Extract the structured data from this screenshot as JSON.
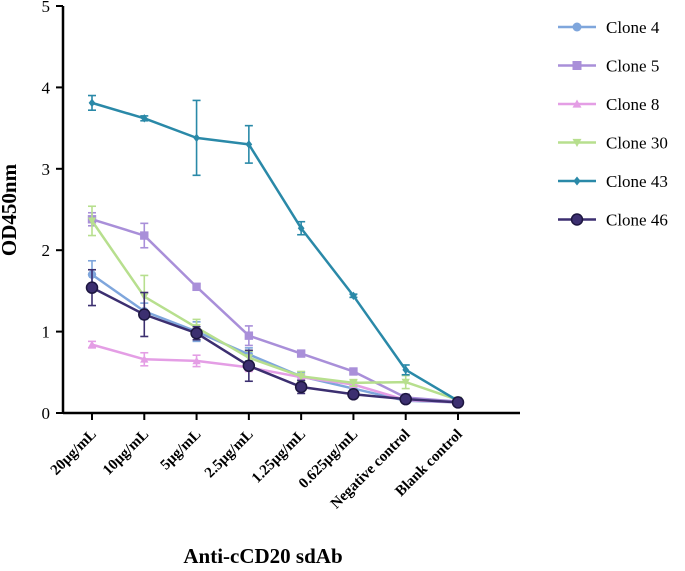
{
  "chart_data": {
    "type": "line",
    "title": "",
    "xlabel": "Anti-cCD20 sdAb",
    "ylabel": "OD450nm",
    "ylim": [
      0,
      5
    ],
    "yticks": [
      0,
      1,
      2,
      3,
      4,
      5
    ],
    "legend_position": "right",
    "categories": [
      "20μg/mL",
      "10μg/mL",
      "5μg/mL",
      "2.5μg/mL",
      "1.25μg/mL",
      "0.625μg/mL",
      "Negative control",
      "Blank control"
    ],
    "series": [
      {
        "name": "Clone 4",
        "marker": "circle",
        "color": "#7fa6dc",
        "values": [
          1.7,
          1.25,
          1.0,
          0.72,
          0.45,
          0.3,
          0.15,
          0.13
        ],
        "errors": [
          0.17,
          0.1,
          0.12,
          0.08,
          0.05,
          0.04,
          0.03,
          0.02
        ]
      },
      {
        "name": "Clone 5",
        "marker": "square",
        "color": "#a98fd9",
        "values": [
          2.38,
          2.18,
          1.55,
          0.95,
          0.73,
          0.51,
          0.19,
          0.14
        ],
        "errors": [
          0.08,
          0.15,
          0.04,
          0.12,
          0.03,
          0.03,
          0.03,
          0.02
        ]
      },
      {
        "name": "Clone 8",
        "marker": "triangle-up",
        "color": "#e49ee5",
        "values": [
          0.84,
          0.66,
          0.64,
          0.56,
          0.44,
          0.35,
          0.16,
          0.13
        ],
        "errors": [
          0.04,
          0.08,
          0.07,
          0.05,
          0.03,
          0.03,
          0.02,
          0.02
        ]
      },
      {
        "name": "Clone 30",
        "marker": "triangle-down",
        "color": "#b7df8e",
        "values": [
          2.36,
          1.43,
          1.05,
          0.68,
          0.45,
          0.37,
          0.38,
          0.16
        ],
        "errors": [
          0.18,
          0.26,
          0.1,
          0.08,
          0.06,
          0.04,
          0.08,
          0.02
        ]
      },
      {
        "name": "Clone 43",
        "marker": "diamond",
        "color": "#2a89a8",
        "values": [
          3.81,
          3.62,
          3.38,
          3.3,
          2.27,
          1.44,
          0.53,
          0.15
        ],
        "errors": [
          0.09,
          0.03,
          0.46,
          0.23,
          0.08,
          0.02,
          0.06,
          0.02
        ]
      },
      {
        "name": "Clone 46",
        "marker": "circle",
        "color": "#3c2f70",
        "values": [
          1.54,
          1.21,
          0.98,
          0.58,
          0.32,
          0.23,
          0.17,
          0.13
        ],
        "errors": [
          0.22,
          0.27,
          0.08,
          0.19,
          0.08,
          0.05,
          0.03,
          0.02
        ]
      }
    ]
  }
}
